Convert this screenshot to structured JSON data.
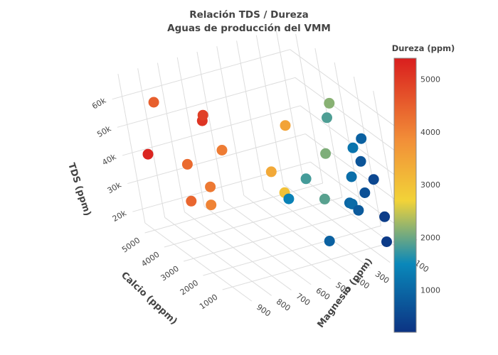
{
  "chart_data": {
    "type": "scatter3d",
    "title_line1": "Relación TDS / Dureza",
    "title_line2": "Aguas de producción del VMM",
    "axes": {
      "x": {
        "label": "Calcio (pppm)",
        "ticks": [
          "5000",
          "4000",
          "3000",
          "2000",
          "1000"
        ],
        "tick_values": [
          5000,
          4000,
          3000,
          2000,
          1000
        ],
        "range": [
          0,
          5500
        ]
      },
      "y": {
        "label": "Magnesio (ppm)",
        "ticks": [
          "100",
          "200",
          "300",
          "400",
          "500",
          "600",
          "700",
          "800",
          "900"
        ],
        "tick_values": [
          100,
          200,
          300,
          400,
          500,
          600,
          700,
          800,
          900
        ],
        "range": [
          50,
          950
        ]
      },
      "z": {
        "label": "TDS (ppm)",
        "ticks": [
          "20k",
          "30k",
          "40k",
          "50k",
          "60k"
        ],
        "tick_values": [
          20000,
          30000,
          40000,
          50000,
          60000
        ],
        "range": [
          15000,
          68000
        ]
      }
    },
    "colorbar": {
      "title": "Dureza (ppm)",
      "ticks": [
        "5000",
        "4000",
        "3000",
        "2000",
        "1000"
      ],
      "tick_values": [
        5000,
        4000,
        3000,
        2000,
        1000
      ],
      "range": [
        200,
        5400
      ],
      "colorscale": [
        "#0c3383",
        "#0a88ba",
        "#f2d338",
        "#f28f38",
        "#d91e1e"
      ]
    },
    "points": [
      {
        "calcio": 4300,
        "magnesio": 850,
        "tds": 63000,
        "dureza": 4500
      },
      {
        "calcio": 4600,
        "magnesio": 600,
        "tds": 52000,
        "dureza": 4950
      },
      {
        "calcio": 4700,
        "magnesio": 600,
        "tds": 49500,
        "dureza": 5100
      },
      {
        "calcio": 5200,
        "magnesio": 850,
        "tds": 40000,
        "dureza": 5300
      },
      {
        "calcio": 3600,
        "magnesio": 620,
        "tds": 45000,
        "dureza": 4100
      },
      {
        "calcio": 4200,
        "magnesio": 750,
        "tds": 39500,
        "dureza": 4350
      },
      {
        "calcio": 3700,
        "magnesio": 700,
        "tds": 33000,
        "dureza": 4150
      },
      {
        "calcio": 4000,
        "magnesio": 780,
        "tds": 28000,
        "dureza": 4400
      },
      {
        "calcio": 3600,
        "magnesio": 720,
        "tds": 27500,
        "dureza": 4000
      },
      {
        "calcio": 2900,
        "magnesio": 350,
        "tds": 52000,
        "dureza": 3500
      },
      {
        "calcio": 3000,
        "magnesio": 450,
        "tds": 37000,
        "dureza": 3400
      },
      {
        "calcio": 2800,
        "magnesio": 420,
        "tds": 30000,
        "dureza": 3000
      },
      {
        "calcio": 2500,
        "magnesio": 430,
        "tds": 29500,
        "dureza": 1400
      },
      {
        "calcio": 1900,
        "magnesio": 200,
        "tds": 62000,
        "dureza": 2150
      },
      {
        "calcio": 1950,
        "magnesio": 220,
        "tds": 57000,
        "dureza": 1850
      },
      {
        "calcio": 1800,
        "magnesio": 270,
        "tds": 46000,
        "dureza": 2100
      },
      {
        "calcio": 2000,
        "magnesio": 370,
        "tds": 38000,
        "dureza": 1800
      },
      {
        "calcio": 1600,
        "magnesio": 330,
        "tds": 32000,
        "dureza": 1900
      },
      {
        "calcio": 1000,
        "magnesio": 150,
        "tds": 53000,
        "dureza": 900
      },
      {
        "calcio": 1100,
        "magnesio": 190,
        "tds": 50000,
        "dureza": 1200
      },
      {
        "calcio": 900,
        "magnesio": 180,
        "tds": 46000,
        "dureza": 700
      },
      {
        "calcio": 1000,
        "magnesio": 230,
        "tds": 41000,
        "dureza": 1100
      },
      {
        "calcio": 700,
        "magnesio": 150,
        "tds": 40000,
        "dureza": 500
      },
      {
        "calcio": 750,
        "magnesio": 200,
        "tds": 36000,
        "dureza": 650
      },
      {
        "calcio": 900,
        "magnesio": 270,
        "tds": 33000,
        "dureza": 1000
      },
      {
        "calcio": 880,
        "magnesio": 260,
        "tds": 32500,
        "dureza": 1050
      },
      {
        "calcio": 700,
        "magnesio": 250,
        "tds": 31000,
        "dureza": 800
      },
      {
        "calcio": 450,
        "magnesio": 150,
        "tds": 28000,
        "dureza": 350
      },
      {
        "calcio": 900,
        "magnesio": 400,
        "tds": 22000,
        "dureza": 900
      },
      {
        "calcio": 350,
        "magnesio": 170,
        "tds": 20000,
        "dureza": 300
      }
    ]
  }
}
